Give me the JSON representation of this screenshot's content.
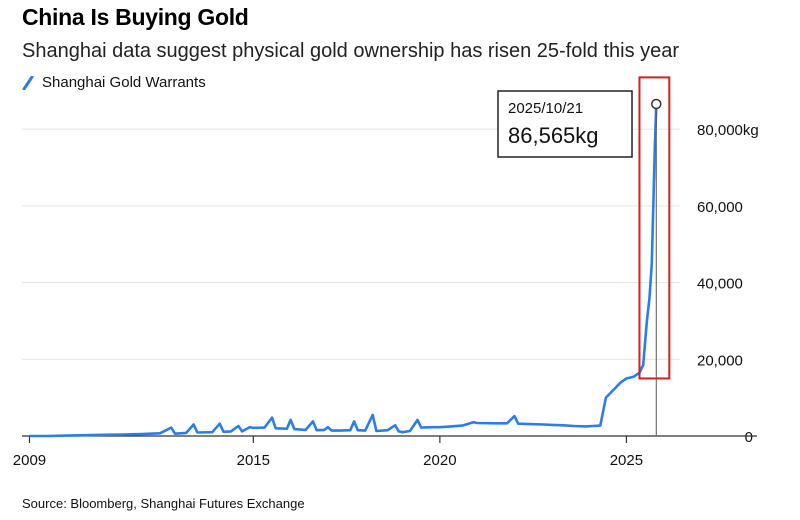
{
  "title": "China Is Buying Gold",
  "subtitle": "Shanghai data suggest physical gold ownership has risen 25-fold this year",
  "source": "Source: Bloomberg, Shanghai Futures Exchange",
  "colors": {
    "series": "#2b7de9",
    "highlight": "#cc2222",
    "grid": "#e4e4e4",
    "axis": "#333333"
  },
  "chart_data": {
    "type": "line",
    "series_name": "Shanghai Gold Warrants",
    "x_ticks": [
      "2009",
      "2015",
      "2020",
      "2025"
    ],
    "y_ticks": [
      0,
      20000,
      40000,
      60000,
      80000
    ],
    "y_tick_labels": [
      "0",
      "20,000",
      "40,000",
      "60,000",
      "80,000kg"
    ],
    "xlim": [
      2008.8,
      2028.5
    ],
    "ylim": [
      0,
      86565
    ],
    "annotation": {
      "date": "2025/10/21",
      "value_label": "86,565kg",
      "x": 2025.8,
      "y": 86565
    },
    "highlight_range": {
      "x0": 2025.35,
      "x0_comment": "",
      "x1": 2026.15,
      "y0": 15000,
      "y1": 93500
    },
    "points": [
      [
        2009.0,
        0
      ],
      [
        2009.5,
        0
      ],
      [
        2010.0,
        100
      ],
      [
        2010.5,
        200
      ],
      [
        2011.0,
        300
      ],
      [
        2011.5,
        400
      ],
      [
        2012.0,
        500
      ],
      [
        2012.5,
        700
      ],
      [
        2012.8,
        2200
      ],
      [
        2012.9,
        600
      ],
      [
        2013.2,
        800
      ],
      [
        2013.4,
        3000
      ],
      [
        2013.5,
        900
      ],
      [
        2013.9,
        1000
      ],
      [
        2014.1,
        3200
      ],
      [
        2014.2,
        1100
      ],
      [
        2014.4,
        1200
      ],
      [
        2014.6,
        2600
      ],
      [
        2014.7,
        1200
      ],
      [
        2014.9,
        2300
      ],
      [
        2015.0,
        2100
      ],
      [
        2015.3,
        2200
      ],
      [
        2015.5,
        4800
      ],
      [
        2015.6,
        2000
      ],
      [
        2015.9,
        1900
      ],
      [
        2016.0,
        4200
      ],
      [
        2016.1,
        1800
      ],
      [
        2016.4,
        1600
      ],
      [
        2016.6,
        3800
      ],
      [
        2016.7,
        1500
      ],
      [
        2016.9,
        1600
      ],
      [
        2017.0,
        2300
      ],
      [
        2017.1,
        1400
      ],
      [
        2017.3,
        1400
      ],
      [
        2017.6,
        1500
      ],
      [
        2017.7,
        3800
      ],
      [
        2017.8,
        1500
      ],
      [
        2018.0,
        1400
      ],
      [
        2018.2,
        5500
      ],
      [
        2018.3,
        1300
      ],
      [
        2018.6,
        1500
      ],
      [
        2018.8,
        2800
      ],
      [
        2018.9,
        1200
      ],
      [
        2019.0,
        1000
      ],
      [
        2019.2,
        1300
      ],
      [
        2019.4,
        4200
      ],
      [
        2019.5,
        2200
      ],
      [
        2019.8,
        2300
      ],
      [
        2020.0,
        2300
      ],
      [
        2020.3,
        2500
      ],
      [
        2020.6,
        2700
      ],
      [
        2020.9,
        3600
      ],
      [
        2021.0,
        3400
      ],
      [
        2021.5,
        3300
      ],
      [
        2021.8,
        3300
      ],
      [
        2022.0,
        5200
      ],
      [
        2022.1,
        3200
      ],
      [
        2022.4,
        3100
      ],
      [
        2022.8,
        3000
      ],
      [
        2023.0,
        2900
      ],
      [
        2023.3,
        2800
      ],
      [
        2023.6,
        2600
      ],
      [
        2023.9,
        2500
      ],
      [
        2024.1,
        2600
      ],
      [
        2024.3,
        2700
      ],
      [
        2024.45,
        10000
      ],
      [
        2024.7,
        12500
      ],
      [
        2024.85,
        14000
      ],
      [
        2025.0,
        15000
      ],
      [
        2025.2,
        15500
      ],
      [
        2025.35,
        16500
      ],
      [
        2025.45,
        18500
      ],
      [
        2025.55,
        30000
      ],
      [
        2025.62,
        36000
      ],
      [
        2025.68,
        45000
      ],
      [
        2025.72,
        60000
      ],
      [
        2025.76,
        75000
      ],
      [
        2025.8,
        86565
      ]
    ]
  }
}
